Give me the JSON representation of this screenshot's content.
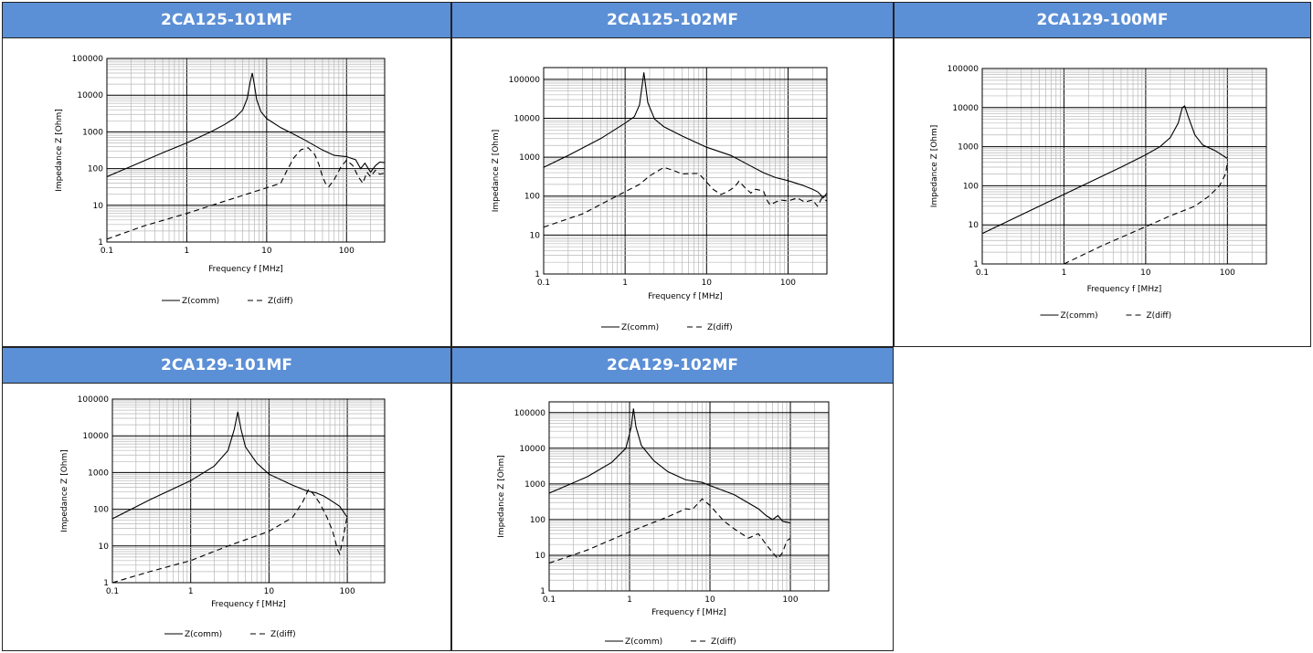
{
  "chart_data": [
    {
      "type": "line",
      "title": "2CA125-101MF",
      "xlabel": "Frequency f [MHz]",
      "ylabel": "Impedance Z [Ohm]",
      "xscale": "log",
      "yscale": "log",
      "xlim": [
        0.1,
        300
      ],
      "ylim": [
        1,
        100000
      ],
      "x_ticks": [
        "0.1",
        "1",
        "10",
        "100"
      ],
      "y_ticks": [
        "1",
        "10",
        "100",
        "1000",
        "10000",
        "100000"
      ],
      "grid": true,
      "legend_position": "bottom",
      "series": [
        {
          "name": "Z(comm)",
          "style": "solid",
          "points": [
            [
              0.1,
              60
            ],
            [
              0.2,
              115
            ],
            [
              0.5,
              270
            ],
            [
              1,
              500
            ],
            [
              2,
              1000
            ],
            [
              3,
              1600
            ],
            [
              4,
              2400
            ],
            [
              5,
              3900
            ],
            [
              5.7,
              8000
            ],
            [
              6.2,
              22000
            ],
            [
              6.6,
              40000
            ],
            [
              7,
              20000
            ],
            [
              7.5,
              7500
            ],
            [
              8.5,
              3500
            ],
            [
              10,
              2300
            ],
            [
              15,
              1300
            ],
            [
              20,
              950
            ],
            [
              30,
              600
            ],
            [
              50,
              320
            ],
            [
              70,
              230
            ],
            [
              100,
              210
            ],
            [
              130,
              175
            ],
            [
              150,
              100
            ],
            [
              170,
              140
            ],
            [
              200,
              80
            ],
            [
              230,
              120
            ],
            [
              260,
              150
            ],
            [
              300,
              145
            ]
          ]
        },
        {
          "name": "Z(diff)",
          "style": "dashed",
          "points": [
            [
              0.1,
              1.2
            ],
            [
              0.3,
              2.8
            ],
            [
              1,
              6
            ],
            [
              3,
              13
            ],
            [
              10,
              30
            ],
            [
              15,
              40
            ],
            [
              18,
              90
            ],
            [
              22,
              200
            ],
            [
              27,
              330
            ],
            [
              33,
              370
            ],
            [
              40,
              240
            ],
            [
              45,
              130
            ],
            [
              50,
              60
            ],
            [
              55,
              38
            ],
            [
              60,
              32
            ],
            [
              70,
              50
            ],
            [
              85,
              110
            ],
            [
              100,
              170
            ],
            [
              120,
              120
            ],
            [
              140,
              60
            ],
            [
              160,
              40
            ],
            [
              180,
              80
            ],
            [
              200,
              60
            ],
            [
              230,
              90
            ],
            [
              260,
              70
            ],
            [
              300,
              75
            ]
          ]
        }
      ]
    },
    {
      "type": "line",
      "title": "2CA125-102MF",
      "xlabel": "Frequency f [MHz]",
      "ylabel": "Impedance Z [Ohm]",
      "xscale": "log",
      "yscale": "log",
      "xlim": [
        0.1,
        300
      ],
      "ylim": [
        1,
        200000
      ],
      "x_ticks": [
        "0.1",
        "1",
        "10",
        "100"
      ],
      "y_ticks": [
        "1",
        "10",
        "100",
        "1000",
        "10000",
        "100000"
      ],
      "grid": true,
      "legend_position": "bottom",
      "series": [
        {
          "name": "Z(comm)",
          "style": "solid",
          "points": [
            [
              0.1,
              550
            ],
            [
              0.2,
              1100
            ],
            [
              0.5,
              3000
            ],
            [
              1,
              7500
            ],
            [
              1.3,
              11000
            ],
            [
              1.5,
              22000
            ],
            [
              1.7,
              150000
            ],
            [
              1.9,
              25000
            ],
            [
              2.3,
              9500
            ],
            [
              3,
              6000
            ],
            [
              5,
              3500
            ],
            [
              10,
              1800
            ],
            [
              20,
              1100
            ],
            [
              30,
              700
            ],
            [
              50,
              400
            ],
            [
              70,
              300
            ],
            [
              100,
              250
            ],
            [
              150,
              190
            ],
            [
              200,
              150
            ],
            [
              230,
              130
            ],
            [
              250,
              110
            ],
            [
              270,
              90
            ],
            [
              300,
              120
            ]
          ]
        },
        {
          "name": "Z(diff)",
          "style": "dashed",
          "points": [
            [
              0.1,
              16
            ],
            [
              0.3,
              35
            ],
            [
              1,
              130
            ],
            [
              1.5,
              200
            ],
            [
              2,
              330
            ],
            [
              3,
              550
            ],
            [
              4,
              450
            ],
            [
              5,
              370
            ],
            [
              7,
              380
            ],
            [
              8,
              380
            ],
            [
              10,
              230
            ],
            [
              12,
              150
            ],
            [
              15,
              110
            ],
            [
              18,
              130
            ],
            [
              22,
              170
            ],
            [
              25,
              240
            ],
            [
              30,
              160
            ],
            [
              35,
              120
            ],
            [
              40,
              150
            ],
            [
              50,
              135
            ],
            [
              55,
              80
            ],
            [
              60,
              60
            ],
            [
              80,
              80
            ],
            [
              100,
              75
            ],
            [
              130,
              90
            ],
            [
              160,
              70
            ],
            [
              200,
              80
            ],
            [
              230,
              55
            ],
            [
              260,
              90
            ],
            [
              300,
              75
            ]
          ]
        }
      ]
    },
    {
      "type": "line",
      "title": "2CA129-100MF",
      "xlabel": "Frequency f [MHz]",
      "ylabel": "Impedance Z [Ohm]",
      "xscale": "log",
      "yscale": "log",
      "xlim": [
        0.1,
        300
      ],
      "ylim": [
        1,
        100000
      ],
      "x_ticks": [
        "0.1",
        "1",
        "10",
        "100"
      ],
      "y_ticks": [
        "1",
        "10",
        "100",
        "1000",
        "10000",
        "100000"
      ],
      "grid": true,
      "legend_position": "bottom",
      "series": [
        {
          "name": "Z(comm)",
          "style": "solid",
          "points": [
            [
              0.1,
              6
            ],
            [
              1,
              60
            ],
            [
              5,
              300
            ],
            [
              10,
              620
            ],
            [
              15,
              1000
            ],
            [
              20,
              1700
            ],
            [
              25,
              4000
            ],
            [
              28,
              10000
            ],
            [
              30,
              11000
            ],
            [
              33,
              6000
            ],
            [
              40,
              2000
            ],
            [
              50,
              1100
            ],
            [
              70,
              800
            ],
            [
              100,
              500
            ]
          ]
        },
        {
          "name": "Z(diff)",
          "style": "dashed",
          "points": [
            [
              1,
              1
            ],
            [
              3,
              3
            ],
            [
              10,
              9
            ],
            [
              20,
              17
            ],
            [
              40,
              30
            ],
            [
              60,
              55
            ],
            [
              80,
              100
            ],
            [
              95,
              200
            ],
            [
              100,
              400
            ]
          ]
        }
      ]
    },
    {
      "type": "line",
      "title": "2CA129-101MF",
      "xlabel": "Frequency f [MHz]",
      "ylabel": "Impedance Z [Ohm]",
      "xscale": "log",
      "yscale": "log",
      "xlim": [
        0.1,
        300
      ],
      "ylim": [
        1,
        100000
      ],
      "x_ticks": [
        "0.1",
        "1",
        "10",
        "100"
      ],
      "y_ticks": [
        "1",
        "10",
        "100",
        "1000",
        "10000",
        "100000"
      ],
      "grid": true,
      "legend_position": "bottom",
      "series": [
        {
          "name": "Z(comm)",
          "style": "solid",
          "points": [
            [
              0.1,
              55
            ],
            [
              0.3,
              180
            ],
            [
              1,
              600
            ],
            [
              2,
              1500
            ],
            [
              3,
              4000
            ],
            [
              3.6,
              15000
            ],
            [
              4,
              45000
            ],
            [
              4.4,
              15000
            ],
            [
              5,
              5000
            ],
            [
              7,
              1800
            ],
            [
              10,
              900
            ],
            [
              20,
              450
            ],
            [
              30,
              320
            ],
            [
              40,
              280
            ],
            [
              50,
              230
            ],
            [
              60,
              180
            ],
            [
              80,
              120
            ],
            [
              100,
              60
            ]
          ]
        },
        {
          "name": "Z(diff)",
          "style": "dashed",
          "points": [
            [
              0.1,
              1
            ],
            [
              0.3,
              2
            ],
            [
              1,
              4
            ],
            [
              3,
              10
            ],
            [
              10,
              25
            ],
            [
              20,
              60
            ],
            [
              27,
              160
            ],
            [
              32,
              350
            ],
            [
              37,
              260
            ],
            [
              45,
              140
            ],
            [
              55,
              60
            ],
            [
              65,
              25
            ],
            [
              75,
              8
            ],
            [
              80,
              6
            ],
            [
              90,
              20
            ],
            [
              100,
              70
            ]
          ]
        }
      ]
    },
    {
      "type": "line",
      "title": "2CA129-102MF",
      "xlabel": "Frequency f [MHz]",
      "ylabel": "Impedance Z [Ohm]",
      "xscale": "log",
      "yscale": "log",
      "xlim": [
        0.1,
        300
      ],
      "ylim": [
        1,
        200000
      ],
      "x_ticks": [
        "0.1",
        "1",
        "10",
        "100"
      ],
      "y_ticks": [
        "1",
        "10",
        "100",
        "1000",
        "10000",
        "100000"
      ],
      "grid": true,
      "legend_position": "bottom",
      "series": [
        {
          "name": "Z(comm)",
          "style": "solid",
          "points": [
            [
              0.1,
              550
            ],
            [
              0.3,
              1600
            ],
            [
              0.6,
              4000
            ],
            [
              0.9,
              10000
            ],
            [
              1.05,
              40000
            ],
            [
              1.12,
              130000
            ],
            [
              1.2,
              40000
            ],
            [
              1.4,
              12000
            ],
            [
              2,
              4500
            ],
            [
              3,
              2200
            ],
            [
              5,
              1300
            ],
            [
              8,
              1100
            ],
            [
              10,
              900
            ],
            [
              20,
              500
            ],
            [
              40,
              200
            ],
            [
              50,
              130
            ],
            [
              60,
              100
            ],
            [
              70,
              130
            ],
            [
              80,
              90
            ],
            [
              100,
              80
            ]
          ]
        },
        {
          "name": "Z(diff)",
          "style": "dashed",
          "points": [
            [
              0.1,
              6
            ],
            [
              0.3,
              14
            ],
            [
              1,
              45
            ],
            [
              3,
              120
            ],
            [
              5,
              200
            ],
            [
              6,
              190
            ],
            [
              8,
              380
            ],
            [
              10,
              250
            ],
            [
              15,
              90
            ],
            [
              20,
              55
            ],
            [
              30,
              30
            ],
            [
              40,
              40
            ],
            [
              50,
              20
            ],
            [
              60,
              12
            ],
            [
              70,
              8
            ],
            [
              80,
              12
            ],
            [
              90,
              25
            ],
            [
              100,
              30
            ]
          ]
        }
      ]
    }
  ]
}
